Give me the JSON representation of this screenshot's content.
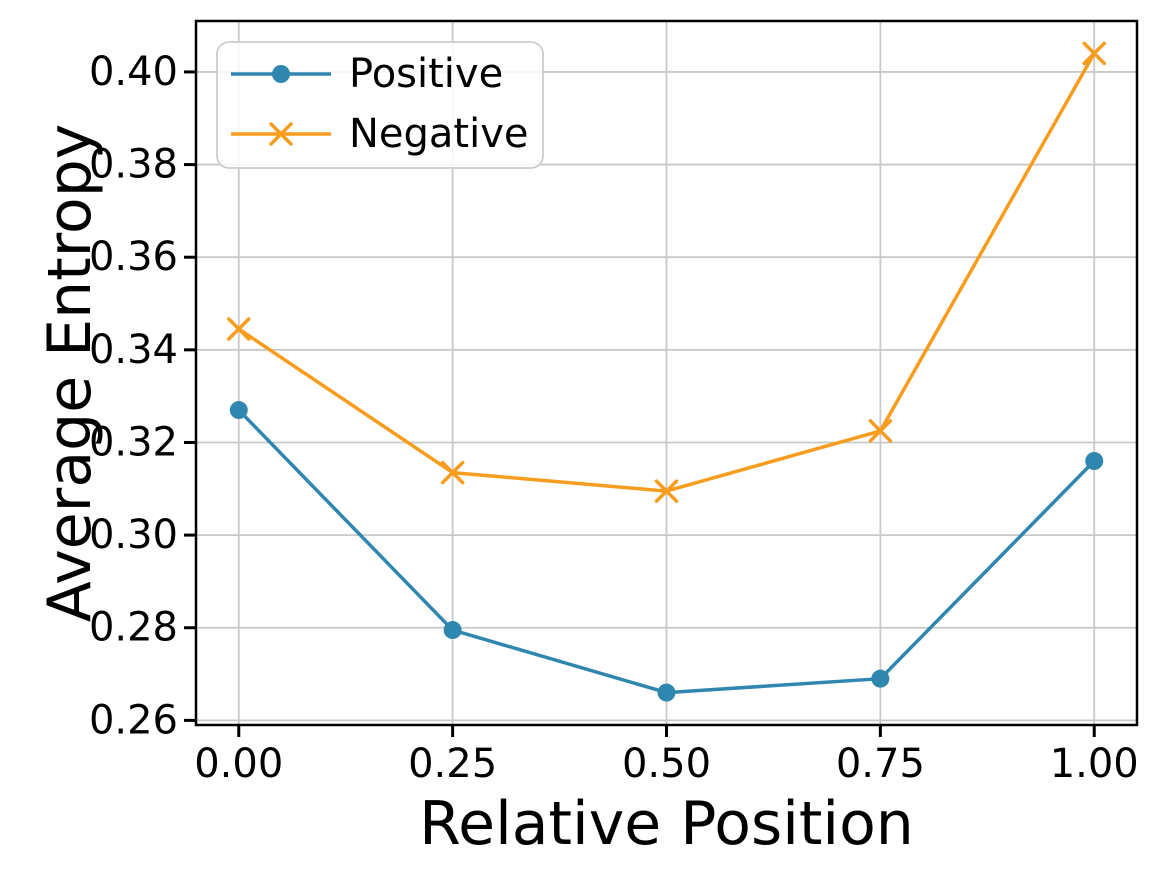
{
  "figure": {
    "background": "#ffffff"
  },
  "chart_data": {
    "type": "line",
    "title": "",
    "xlabel": "Relative Position",
    "ylabel": "Average Entropy",
    "x": [
      0.0,
      0.25,
      0.5,
      0.75,
      1.0
    ],
    "series": [
      {
        "name": "Positive",
        "color": "#2F87B0",
        "marker": "circle",
        "values": [
          0.327,
          0.2795,
          0.266,
          0.269,
          0.316
        ]
      },
      {
        "name": "Negative",
        "color": "#F79C1D",
        "marker": "x",
        "values": [
          0.3445,
          0.3135,
          0.3095,
          0.3225,
          0.404
        ]
      }
    ],
    "xlim": [
      -0.05,
      1.05
    ],
    "ylim": [
      0.259,
      0.411
    ],
    "xticks": {
      "values": [
        0.0,
        0.25,
        0.5,
        0.75,
        1.0
      ],
      "labels": [
        "0.00",
        "0.25",
        "0.50",
        "0.75",
        "1.00"
      ]
    },
    "yticks": {
      "values": [
        0.26,
        0.28,
        0.3,
        0.32,
        0.34,
        0.36,
        0.38,
        0.4
      ],
      "labels": [
        "0.26",
        "0.28",
        "0.30",
        "0.32",
        "0.34",
        "0.36",
        "0.38",
        "0.40"
      ]
    },
    "grid": true,
    "legend": {
      "position": "upper left",
      "entries": [
        "Positive",
        "Negative"
      ]
    }
  },
  "style": {
    "grid_color": "#c9c9c9",
    "spine_color": "#000000",
    "text_color": "#000000",
    "legend_border": "#cccccc",
    "legend_background": "#ffffff"
  }
}
